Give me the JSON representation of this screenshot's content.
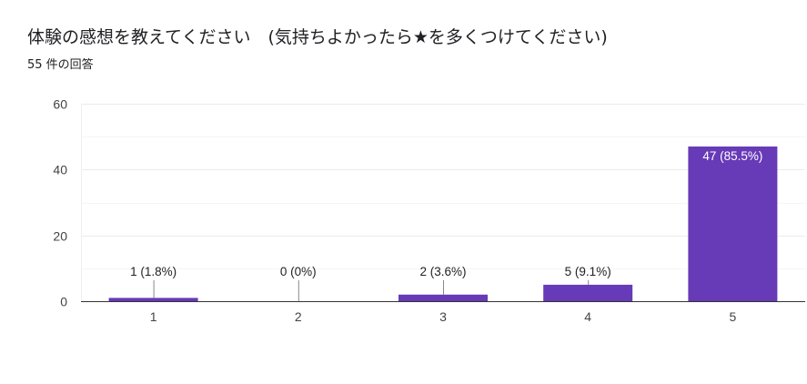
{
  "header": {
    "title": "体験の感想を教えてください　(気持ちよかったら★を多くつけてください)",
    "response_count": "55 件の回答"
  },
  "colors": {
    "bar": "#673ab7",
    "grid": "#ebebeb",
    "axis": "#333333"
  },
  "chart_data": {
    "type": "bar",
    "categories": [
      "1",
      "2",
      "3",
      "4",
      "5"
    ],
    "values": [
      1,
      0,
      2,
      5,
      47
    ],
    "labels": [
      "1 (1.8%)",
      "0 (0%)",
      "2 (3.6%)",
      "5 (9.1%)",
      "47 (85.5%)"
    ],
    "ylim": [
      0,
      60
    ],
    "yticks": [
      0,
      20,
      40,
      60
    ],
    "grid": true,
    "legend": "none"
  }
}
